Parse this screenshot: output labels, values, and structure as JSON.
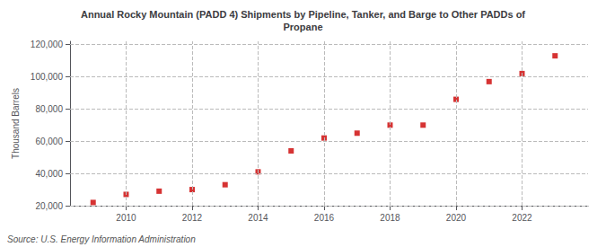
{
  "chart_data": {
    "type": "scatter",
    "title": "Annual Rocky Mountain (PADD 4) Shipments by Pipeline, Tanker, and Barge to Other PADDs of\nPropane",
    "ylabel": "Thousand Barrels",
    "source": "Source: U.S. Energy Information Administration",
    "x": [
      2009,
      2010,
      2011,
      2012,
      2013,
      2014,
      2015,
      2016,
      2017,
      2018,
      2019,
      2020,
      2021,
      2022,
      2023
    ],
    "values": [
      22000,
      27000,
      29000,
      30000,
      33000,
      41000,
      54000,
      62000,
      65000,
      70000,
      70000,
      86000,
      97000,
      102000,
      113000
    ],
    "color": "#cc0000",
    "marker": "square",
    "xlim": [
      2008.3,
      2024.0
    ],
    "xticks": [
      2010,
      2012,
      2014,
      2016,
      2018,
      2020,
      2022
    ],
    "ylim": [
      20000,
      122000
    ],
    "yticks": [
      {
        "value": 20000,
        "label": "20,000"
      },
      {
        "value": 40000,
        "label": "40,000"
      },
      {
        "value": 60000,
        "label": "60,000"
      },
      {
        "value": 80000,
        "label": "80,000"
      },
      {
        "value": 100000,
        "label": "100,000"
      },
      {
        "value": 120000,
        "label": "120,000"
      }
    ],
    "grid": true
  }
}
